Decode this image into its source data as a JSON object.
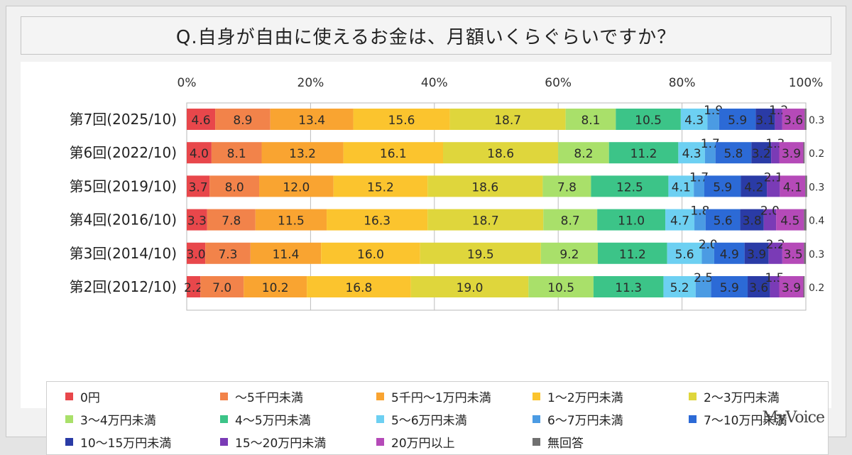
{
  "chart_data": {
    "type": "bar",
    "orientation": "horizontal-stacked-100",
    "title": "Q.自身が自由に使えるお金は、月額いくらぐらいですか？",
    "x_ticks": [
      "0%",
      "20%",
      "40%",
      "60%",
      "80%",
      "100%"
    ],
    "xlim": [
      0,
      100
    ],
    "legend_position": "bottom",
    "categories": [
      "第7回(2025/10)",
      "第6回(2022/10)",
      "第5回(2019/10)",
      "第4回(2016/10)",
      "第3回(2014/10)",
      "第2回(2012/10)"
    ],
    "series": [
      {
        "name": "0円",
        "color": "#e8474b",
        "values": [
          4.6,
          4.0,
          3.7,
          3.3,
          3.0,
          2.2
        ]
      },
      {
        "name": "～5千円未満",
        "color": "#f2834a",
        "values": [
          8.9,
          8.1,
          8.0,
          7.8,
          7.3,
          7.0
        ]
      },
      {
        "name": "5千円～1万円未満",
        "color": "#f9a431",
        "values": [
          13.4,
          13.2,
          12.0,
          11.5,
          11.4,
          10.2
        ]
      },
      {
        "name": "1～2万円未満",
        "color": "#fbc42e",
        "values": [
          15.6,
          16.1,
          15.2,
          16.3,
          16.0,
          16.8
        ]
      },
      {
        "name": "2～3万円未満",
        "color": "#dfd63c",
        "values": [
          18.7,
          18.6,
          18.6,
          18.7,
          19.5,
          19.0
        ]
      },
      {
        "name": "3～4万円未満",
        "color": "#a9e06a",
        "values": [
          8.1,
          8.2,
          7.8,
          8.7,
          9.2,
          10.5
        ]
      },
      {
        "name": "4～5万円未満",
        "color": "#3cc488",
        "values": [
          10.5,
          11.2,
          12.5,
          11.0,
          11.2,
          11.3
        ]
      },
      {
        "name": "5～6万円未満",
        "color": "#6dd0f2",
        "values": [
          4.3,
          4.3,
          4.1,
          4.7,
          5.6,
          5.2
        ]
      },
      {
        "name": "6～7万円未満",
        "color": "#4b9be3",
        "values": [
          1.9,
          1.7,
          1.7,
          1.8,
          2.0,
          2.5
        ]
      },
      {
        "name": "7～10万円未満",
        "color": "#2c6ad6",
        "values": [
          5.9,
          5.8,
          5.9,
          5.6,
          4.9,
          5.9
        ]
      },
      {
        "name": "10～15万円未満",
        "color": "#2a3ba6",
        "values": [
          3.1,
          3.2,
          4.2,
          3.8,
          3.9,
          3.6
        ]
      },
      {
        "name": "15～20万円未満",
        "color": "#7a3bb6",
        "values": [
          1.2,
          1.3,
          2.1,
          2.0,
          2.2,
          1.5
        ]
      },
      {
        "name": "20万円以上",
        "color": "#b54ab8",
        "values": [
          3.6,
          3.9,
          4.1,
          4.5,
          3.5,
          3.9
        ]
      },
      {
        "name": "無回答",
        "color": "#707070",
        "values": [
          0.3,
          0.2,
          0.3,
          0.4,
          0.3,
          0.2
        ]
      }
    ]
  },
  "branding": {
    "logo_text": "MyVoice"
  }
}
